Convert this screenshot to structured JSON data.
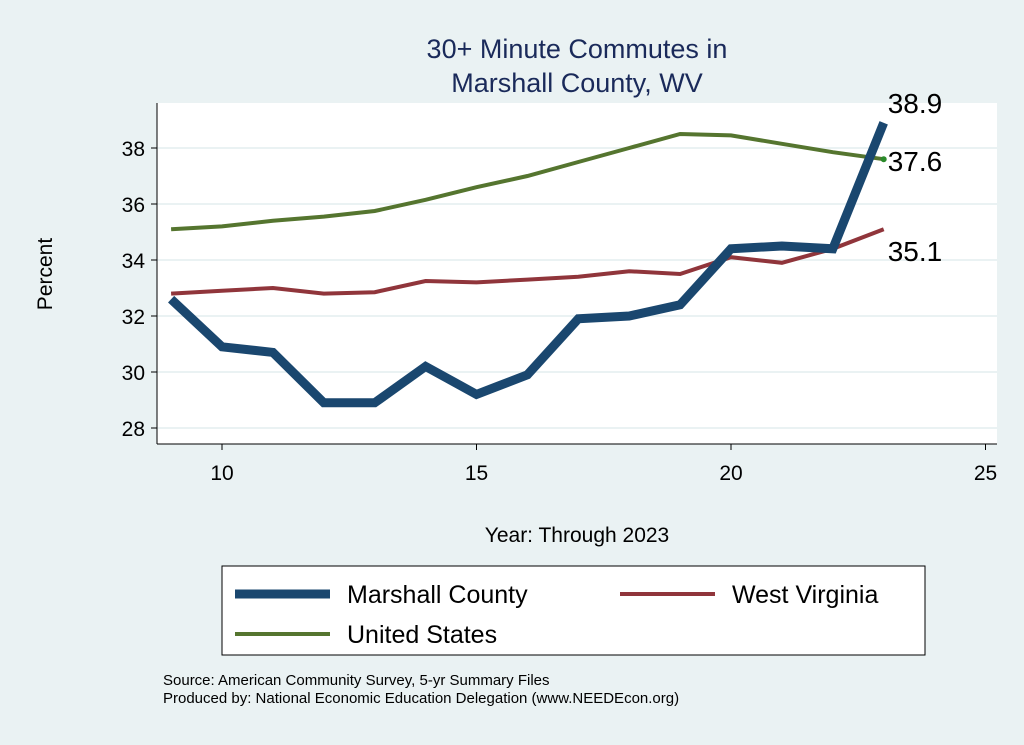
{
  "chart_data": {
    "type": "line",
    "title": "30+ Minute Commutes in",
    "subtitle": "Marshall County, WV",
    "xlabel": "Year: Through 2023",
    "ylabel": "Percent",
    "xlim": [
      8.7,
      25.3
    ],
    "ylim": [
      27.4,
      39.7
    ],
    "xticks": [
      10,
      15,
      20,
      25
    ],
    "yticks": [
      28,
      30,
      32,
      34,
      36,
      38
    ],
    "grid": true,
    "legend_position": "bottom",
    "x": [
      9,
      10,
      11,
      12,
      13,
      14,
      15,
      16,
      17,
      18,
      19,
      20,
      21,
      22,
      23
    ],
    "series": [
      {
        "name": "Marshall County",
        "color": "#1a476f",
        "values": [
          32.6,
          30.9,
          30.7,
          28.9,
          28.9,
          30.2,
          29.2,
          29.9,
          31.9,
          32.0,
          32.4,
          34.4,
          34.5,
          34.4,
          38.9
        ],
        "end_label": "38.9"
      },
      {
        "name": "West Virginia",
        "color": "#90353b",
        "values": [
          32.8,
          32.9,
          33.0,
          32.8,
          32.85,
          33.25,
          33.2,
          33.3,
          33.4,
          33.6,
          33.5,
          34.1,
          33.9,
          34.4,
          35.1
        ],
        "end_label": "35.1"
      },
      {
        "name": "United States",
        "color": "#55752f",
        "values": [
          35.1,
          35.2,
          35.4,
          35.55,
          35.75,
          36.15,
          36.6,
          37.0,
          37.5,
          38.0,
          38.5,
          38.45,
          38.15,
          37.85,
          37.6
        ],
        "end_label": "37.6"
      }
    ]
  },
  "footer": {
    "source": "Source: American Community Survey, 5-yr Summary Files",
    "producer": "Produced by: National Economic Education Delegation (www.NEEDEcon.org)"
  }
}
